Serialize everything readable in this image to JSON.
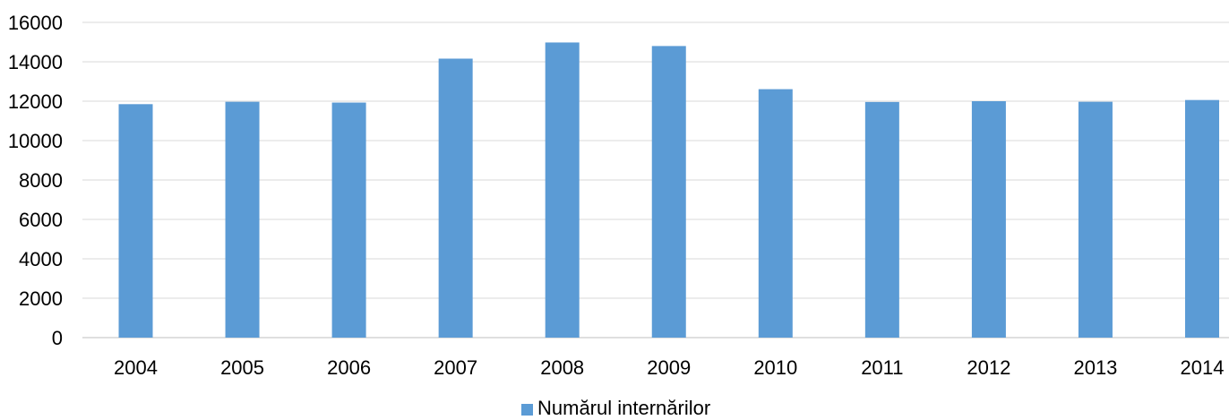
{
  "chart_data": {
    "type": "bar",
    "categories": [
      "2004",
      "2005",
      "2006",
      "2007",
      "2008",
      "2009",
      "2010",
      "2011",
      "2012",
      "2013",
      "2014"
    ],
    "series": [
      {
        "name": "Numărul internărilor",
        "values": [
          11850,
          11970,
          11930,
          14160,
          14980,
          14800,
          12610,
          11960,
          12000,
          11970,
          12060
        ]
      }
    ],
    "yticks": [
      "0",
      "2000",
      "4000",
      "6000",
      "8000",
      "10000",
      "12000",
      "14000",
      "16000"
    ],
    "ylim": [
      0,
      16000
    ],
    "title": "",
    "xlabel": "",
    "ylabel": "",
    "grid": true,
    "legend_position": "bottom",
    "colors": {
      "bar": "#5b9bd5",
      "grid": "#d9d9d9",
      "axis": "#bfbfbf"
    }
  }
}
